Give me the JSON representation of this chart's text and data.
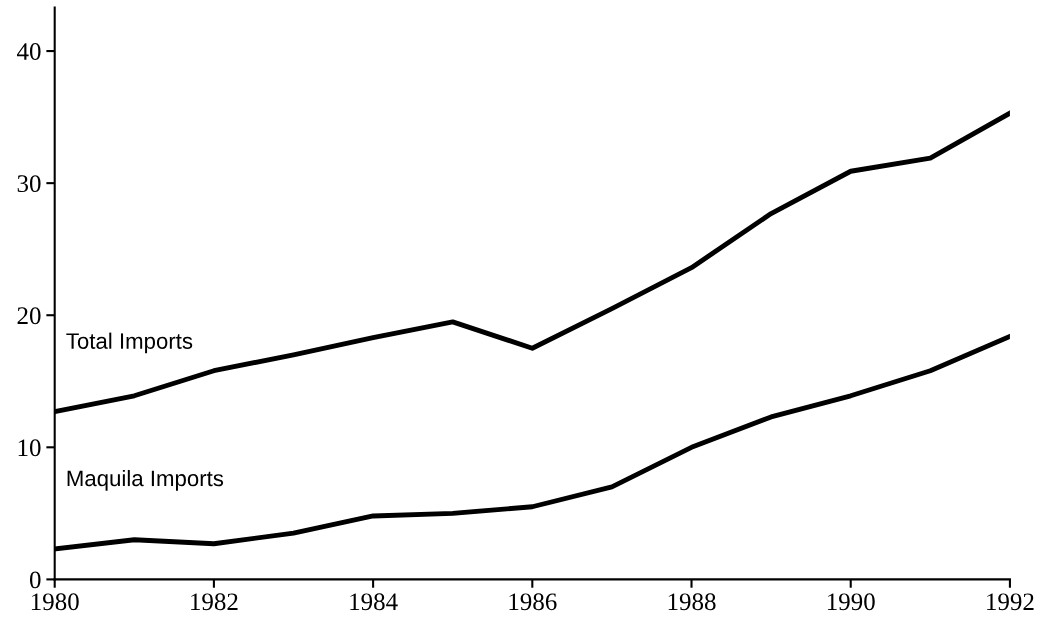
{
  "chart_data": {
    "type": "line",
    "x": [
      1980,
      1981,
      1982,
      1983,
      1984,
      1985,
      1986,
      1987,
      1988,
      1989,
      1990,
      1991,
      1992
    ],
    "series": [
      {
        "name": "Total Imports",
        "color": "#000000",
        "values": [
          12.7,
          13.9,
          15.8,
          17.0,
          18.3,
          19.5,
          17.5,
          20.5,
          23.6,
          27.7,
          30.9,
          31.9,
          35.3
        ]
      },
      {
        "name": "Maquila Imports",
        "color": "#000000",
        "values": [
          2.3,
          3.0,
          2.7,
          3.5,
          4.8,
          5.0,
          5.5,
          7.0,
          10.0,
          12.3,
          13.9,
          15.8,
          18.4
        ]
      }
    ],
    "xlim": [
      1980,
      1992
    ],
    "xticks": [
      1980,
      1982,
      1984,
      1986,
      1988,
      1990,
      1992
    ],
    "ylim": [
      0,
      43.3
    ],
    "yticks": [
      0,
      10,
      20,
      30,
      40
    ],
    "grid": false,
    "legend": false,
    "marker": "none",
    "line_style": "solid"
  }
}
